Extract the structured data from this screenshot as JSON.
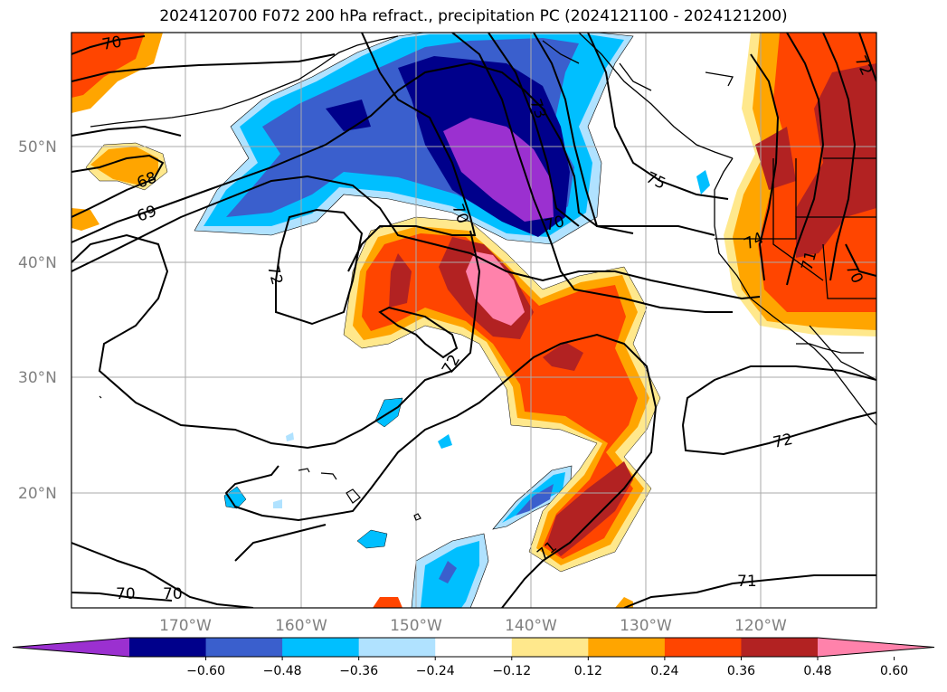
{
  "title": "2024120700 F072 200 hPa refract., precipitation PC (2024121100 - 2024121200)",
  "lat_labels": [
    "50°N",
    "40°N",
    "30°N",
    "20°N"
  ],
  "lon_labels": [
    "170°W",
    "160°W",
    "150°W",
    "140°W",
    "130°W",
    "120°W"
  ],
  "contour_labels": [
    "70",
    "68",
    "69",
    "70",
    "73",
    "75",
    "72",
    "70",
    "72",
    "72",
    "74",
    "71",
    "70",
    "72",
    "71",
    "70",
    "70",
    "71"
  ],
  "colorbar": {
    "colors": [
      "#9b30d0",
      "#00008b",
      "#3a5fcd",
      "#00bfff",
      "#b0e2ff",
      "#ffffff",
      "#ffe88c",
      "#ffa500",
      "#ff4500",
      "#b22222",
      "#ff82ab"
    ],
    "ticks": [
      "−0.60",
      "−0.48",
      "−0.36",
      "−0.24",
      "−0.12",
      "0.12",
      "0.24",
      "0.36",
      "0.48",
      "0.60"
    ]
  }
}
